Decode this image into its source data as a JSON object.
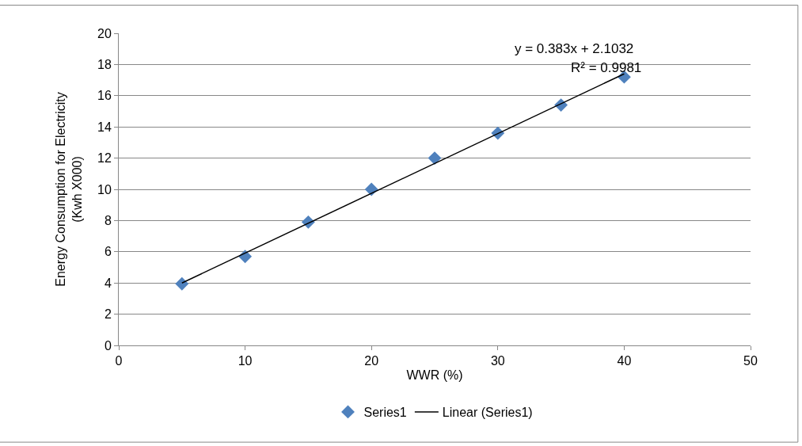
{
  "chart_data": {
    "type": "scatter",
    "xlabel": "WWR (%)",
    "ylabel": "Energy Consumption for Electricity\n(Kwh X000)",
    "series": [
      {
        "name": "Series1",
        "color": "#4f81bd",
        "marker": "diamond",
        "x": [
          5,
          10,
          15,
          20,
          25,
          30,
          35,
          40
        ],
        "values": [
          3.95,
          5.7,
          7.9,
          10.0,
          12.0,
          13.6,
          15.4,
          17.2
        ]
      },
      {
        "name": "Linear (Series1)",
        "type": "line",
        "color": "#000000",
        "marker": "none",
        "line_style": "solid",
        "x": [
          5,
          40
        ],
        "values": [
          4.0,
          17.4
        ]
      }
    ],
    "annotations": [
      "y = 0.383x + 2.1032",
      "R² = 0.9981"
    ],
    "xlim": [
      0,
      50
    ],
    "xticks": [
      0,
      10,
      20,
      30,
      40,
      50
    ],
    "ylim": [
      0,
      20
    ],
    "yticks": [
      0,
      2,
      4,
      6,
      8,
      10,
      12,
      14,
      16,
      18,
      20
    ],
    "grid": "y",
    "legend": "bottom"
  }
}
